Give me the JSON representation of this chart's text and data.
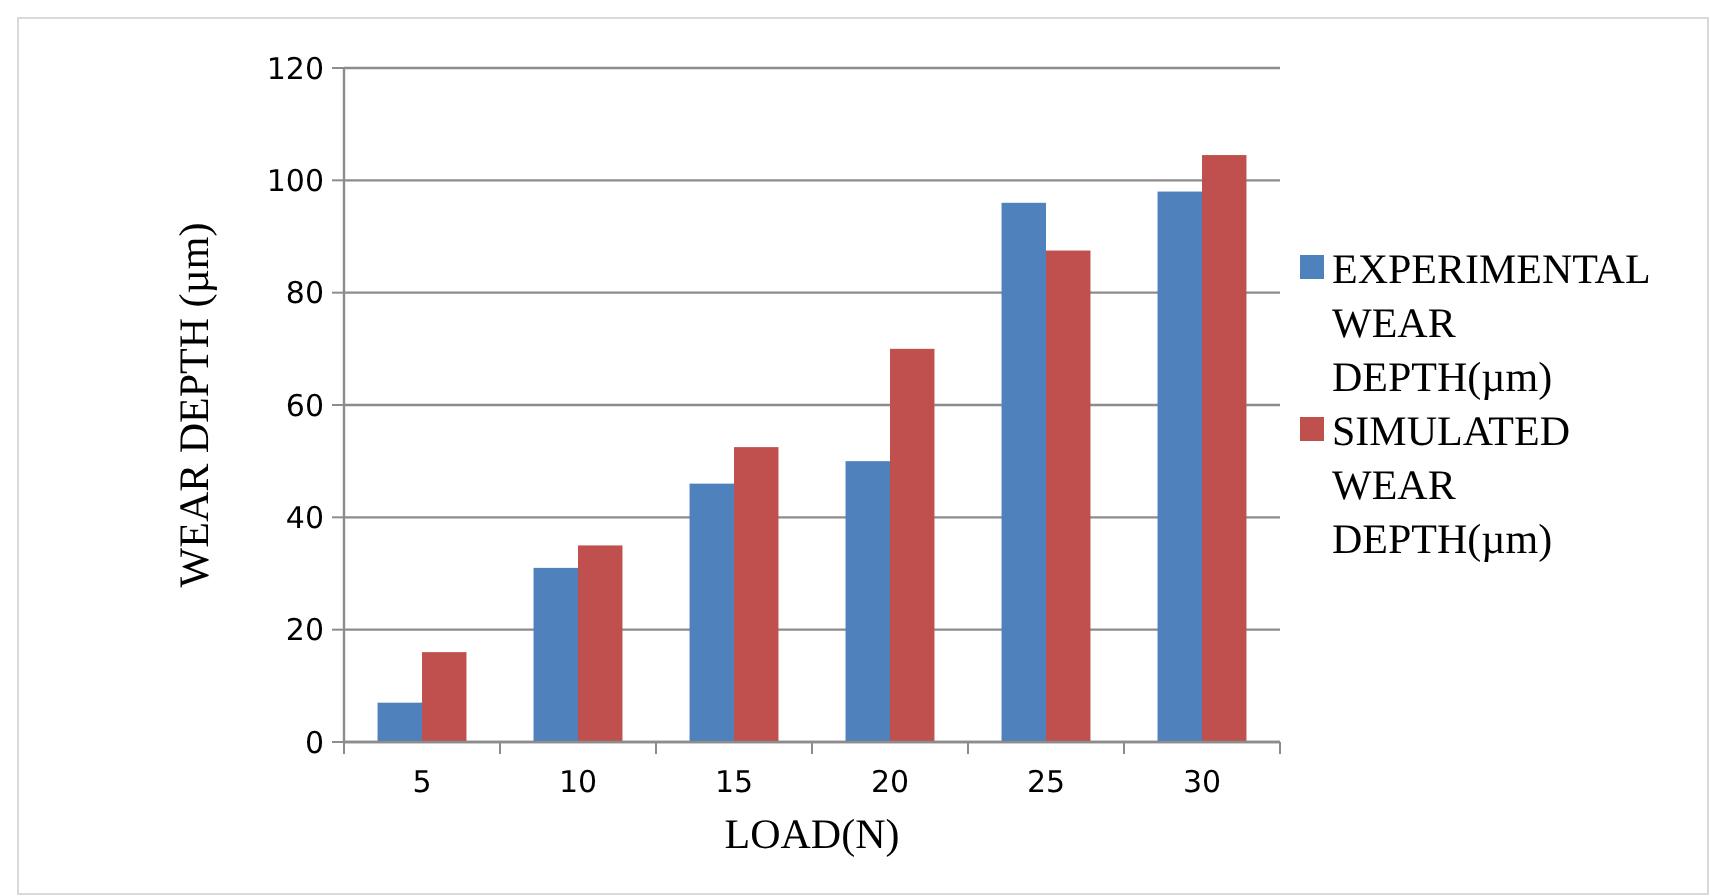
{
  "chart_data": {
    "type": "bar",
    "xlabel": "LOAD(N)",
    "ylabel": "WEAR DEPTH (µm)",
    "categories": [
      "5",
      "10",
      "15",
      "20",
      "25",
      "30"
    ],
    "series": [
      {
        "name": "EXPERIMENTAL WEAR DEPTH(µm)",
        "color": "#4f81bd",
        "values": [
          7,
          31,
          46,
          50,
          96,
          98
        ]
      },
      {
        "name": "SIMULATED WEAR DEPTH(µm)",
        "color": "#c0504d",
        "values": [
          16,
          35,
          52.5,
          70,
          87.5,
          104.5
        ]
      }
    ],
    "ylim": [
      0,
      120
    ],
    "yticks": [
      0,
      20,
      40,
      60,
      80,
      100,
      120
    ],
    "grid": "y",
    "legend": "right"
  }
}
